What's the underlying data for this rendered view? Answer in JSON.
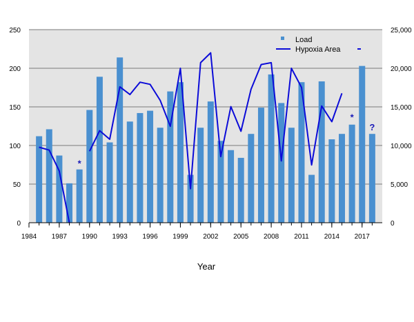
{
  "chart_data": {
    "type": "bar+line",
    "xlabel": "Year",
    "x_tick_labels": [
      "1984",
      "1987",
      "1990",
      "1993",
      "1996",
      "1999",
      "2002",
      "2005",
      "2008",
      "2011",
      "2014",
      "2017"
    ],
    "x_tick_years": [
      1984,
      1987,
      1990,
      1993,
      1996,
      1999,
      2002,
      2005,
      2008,
      2011,
      2014,
      2017
    ],
    "xlim": [
      1984,
      2019
    ],
    "y_left": {
      "ylim": [
        0,
        250
      ],
      "ticks": [
        "0",
        "50",
        "100",
        "150",
        "200",
        "250"
      ],
      "tick_values": [
        0,
        50,
        100,
        150,
        200,
        250
      ]
    },
    "y_right": {
      "ylim": [
        0,
        25000
      ],
      "ticks": [
        "0",
        "5,000",
        "10,000",
        "15,000",
        "20,000",
        "25,000"
      ],
      "tick_values": [
        0,
        5000,
        10000,
        15000,
        20000,
        25000
      ]
    },
    "grid": true,
    "legend_position": "top-right",
    "bar_color": "#4a90d0",
    "line_color": "#0b0bd8",
    "plot_bg": "#e4e4e4",
    "series": [
      {
        "name": "Load",
        "kind": "bar",
        "axis": "left",
        "x": [
          1985,
          1986,
          1987,
          1988,
          1989,
          1990,
          1991,
          1992,
          1993,
          1994,
          1995,
          1996,
          1997,
          1998,
          1999,
          2000,
          2001,
          2002,
          2003,
          2004,
          2005,
          2006,
          2007,
          2008,
          2009,
          2010,
          2011,
          2012,
          2013,
          2014,
          2015,
          2016,
          2017,
          2018
        ],
        "values": [
          112,
          121,
          87,
          51,
          69,
          146,
          189,
          104,
          214,
          131,
          142,
          145,
          123,
          170,
          182,
          62,
          123,
          157,
          106,
          94,
          84,
          115,
          149,
          192,
          155,
          123,
          182,
          62,
          183,
          108,
          115,
          127,
          203,
          115
        ]
      },
      {
        "name": "Hypoxia Area",
        "kind": "line",
        "axis": "right",
        "segments": [
          {
            "x": [
              1985,
              1986,
              1987,
              1988
            ],
            "values": [
              9774,
              9400,
              6700,
              0
            ]
          },
          {
            "x": [
              1990,
              1991,
              1992,
              1993,
              1994,
              1995,
              1996,
              1997,
              1998,
              1999,
              2000,
              2001,
              2002,
              2003,
              2004,
              2005,
              2006,
              2007,
              2008,
              2009,
              2010,
              2011,
              2012,
              2013,
              2014,
              2015
            ],
            "values": [
              9259,
              11920,
              10800,
              17600,
              16600,
              18200,
              17920,
              15840,
              12480,
              20000,
              4400,
              20720,
              22000,
              8560,
              15040,
              11840,
              17280,
              20480,
              20720,
              8000,
              20000,
              17520,
              7480,
              15120,
              13080,
              16760
            ]
          }
        ]
      }
    ],
    "annotations": [
      {
        "text": "*",
        "x": 1989,
        "y_left": 78
      },
      {
        "text": "*",
        "x": 2016,
        "y_left": 138
      },
      {
        "text": "?",
        "x": 2018,
        "y_left": 125
      }
    ]
  }
}
